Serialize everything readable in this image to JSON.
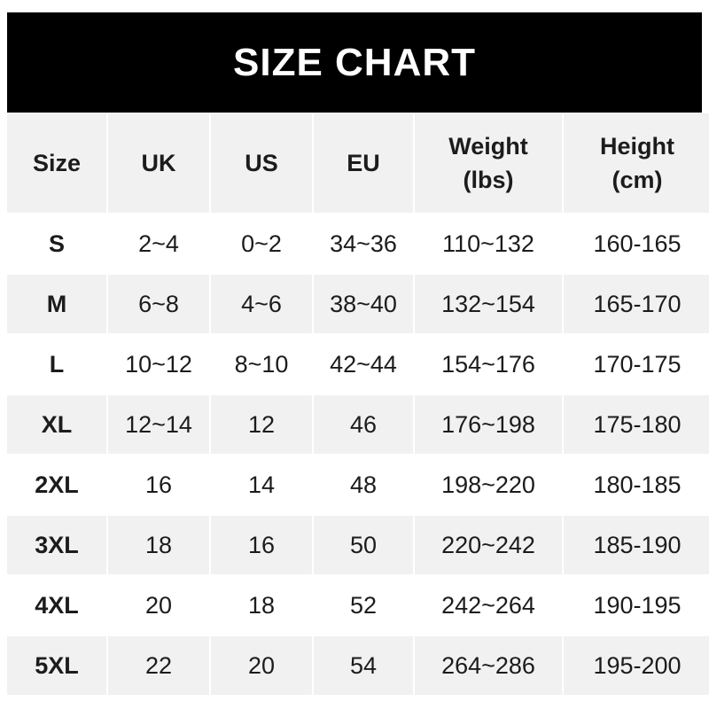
{
  "title": "SIZE CHART",
  "headers": [
    [
      "Size"
    ],
    [
      "UK"
    ],
    [
      "US"
    ],
    [
      "EU"
    ],
    [
      "Weight",
      "(lbs)"
    ],
    [
      "Height",
      "(cm)"
    ]
  ],
  "rows": [
    [
      "S",
      "2~4",
      "0~2",
      "34~36",
      "110~132",
      "160-165"
    ],
    [
      "M",
      "6~8",
      "4~6",
      "38~40",
      "132~154",
      "165-170"
    ],
    [
      "L",
      "10~12",
      "8~10",
      "42~44",
      "154~176",
      "170-175"
    ],
    [
      "XL",
      "12~14",
      "12",
      "46",
      "176~198",
      "175-180"
    ],
    [
      "2XL",
      "16",
      "14",
      "48",
      "198~220",
      "180-185"
    ],
    [
      "3XL",
      "18",
      "16",
      "50",
      "220~242",
      "185-190"
    ],
    [
      "4XL",
      "20",
      "18",
      "52",
      "242~264",
      "190-195"
    ],
    [
      "5XL",
      "22",
      "20",
      "54",
      "264~286",
      "195-200"
    ]
  ],
  "colors": {
    "banner": "#000000",
    "stripe": "#f1f1f1",
    "text": "#1c1c1c"
  }
}
